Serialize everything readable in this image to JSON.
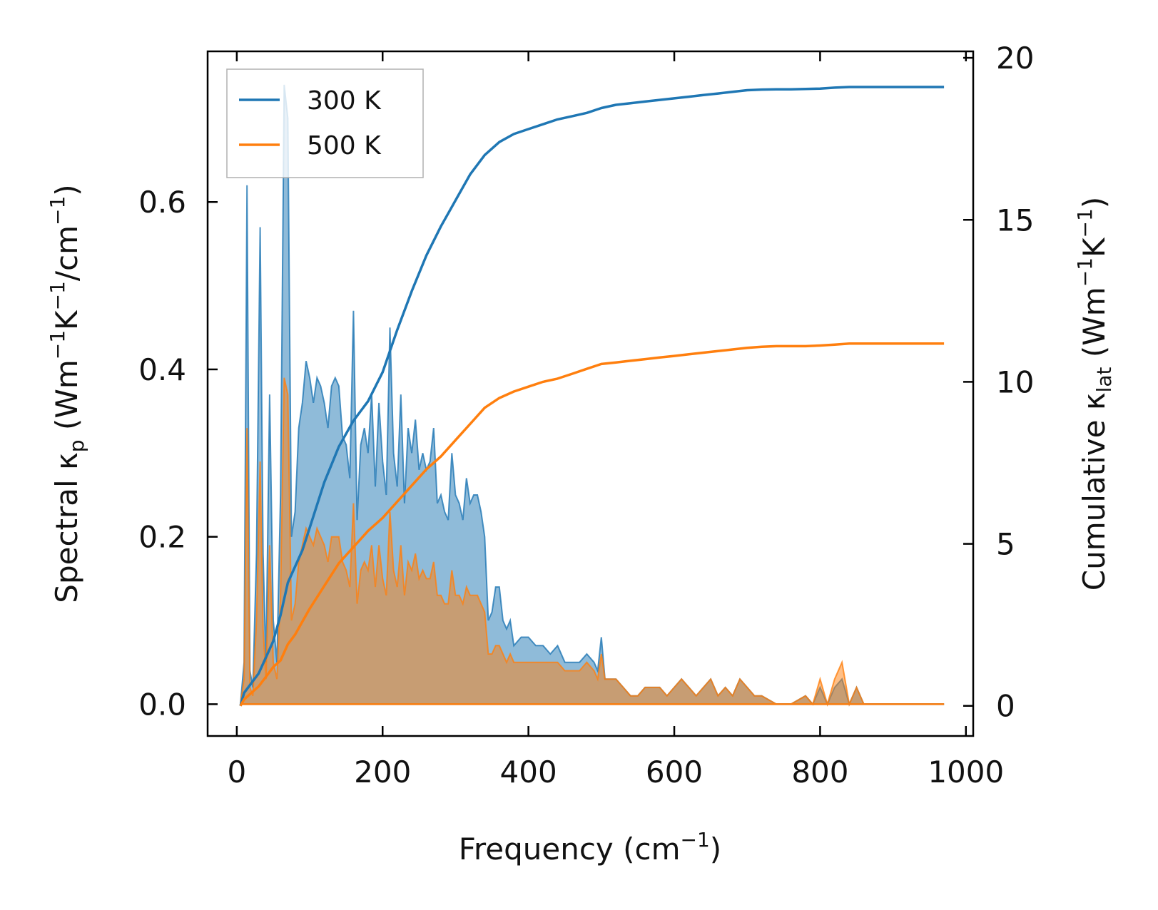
{
  "chart_data": {
    "type": "area",
    "xlabel": {
      "base": "Frequency (cm",
      "sup": "−1",
      "tail": ")"
    },
    "ylabel_left": {
      "base": "Spectral κ",
      "sub": "p",
      "mid": " (Wm",
      "sup1": "−1",
      "mid2": "K",
      "sup2": "−1",
      "mid3": "/cm",
      "sup3": "−1",
      "tail": ")"
    },
    "ylabel_right": {
      "base": "Cumulative κ",
      "sub": "lat",
      "mid": " (Wm",
      "sup1": "−1",
      "mid2": "K",
      "sup2": "−1",
      "tail": ")"
    },
    "xlim": [
      -40,
      1010
    ],
    "ylim_left": [
      -0.038,
      0.78
    ],
    "ylim_right": [
      -0.93,
      20.2
    ],
    "x_ticks": [
      0,
      200,
      400,
      600,
      800,
      1000
    ],
    "x_tick_labels": [
      "0",
      "200",
      "400",
      "600",
      "800",
      "1000"
    ],
    "y_left_ticks": [
      0.0,
      0.2,
      0.4,
      0.6
    ],
    "y_left_tick_labels": [
      "0.0",
      "0.2",
      "0.4",
      "0.6"
    ],
    "y_right_ticks": [
      0,
      5,
      10,
      15,
      20
    ],
    "y_right_tick_labels": [
      "0",
      "5",
      "10",
      "15",
      "20"
    ],
    "legend": {
      "position": "top-left",
      "entries": [
        {
          "label": "300 K",
          "color": "#1f77b4"
        },
        {
          "label": "500 K",
          "color": "#ff7f0e"
        }
      ]
    },
    "series": [
      {
        "name": "300 K",
        "color": "#1f77b4",
        "spectral": {
          "x": [
            5,
            10,
            14,
            18,
            22,
            27,
            32,
            36,
            40,
            45,
            50,
            55,
            60,
            65,
            70,
            75,
            80,
            85,
            90,
            95,
            100,
            105,
            110,
            115,
            120,
            125,
            130,
            135,
            140,
            145,
            150,
            155,
            160,
            165,
            170,
            175,
            180,
            185,
            190,
            195,
            200,
            205,
            210,
            215,
            220,
            225,
            230,
            235,
            240,
            245,
            250,
            255,
            260,
            265,
            270,
            275,
            280,
            285,
            290,
            295,
            300,
            305,
            310,
            315,
            320,
            325,
            330,
            335,
            340,
            345,
            350,
            355,
            360,
            365,
            370,
            375,
            380,
            390,
            400,
            410,
            420,
            430,
            440,
            450,
            460,
            470,
            480,
            490,
            495,
            500,
            505,
            510,
            520,
            530,
            540,
            550,
            560,
            570,
            580,
            590,
            600,
            610,
            620,
            630,
            640,
            650,
            660,
            670,
            680,
            690,
            700,
            710,
            720,
            740,
            760,
            780,
            790,
            800,
            810,
            820,
            830,
            840,
            850,
            860,
            880,
            900,
            950,
            970
          ],
          "y": [
            0.0,
            0.05,
            0.62,
            0.04,
            0.02,
            0.18,
            0.57,
            0.18,
            0.05,
            0.37,
            0.1,
            0.05,
            0.25,
            0.74,
            0.7,
            0.2,
            0.23,
            0.33,
            0.36,
            0.41,
            0.39,
            0.36,
            0.39,
            0.38,
            0.36,
            0.33,
            0.38,
            0.39,
            0.38,
            0.32,
            0.31,
            0.27,
            0.47,
            0.22,
            0.31,
            0.33,
            0.3,
            0.37,
            0.26,
            0.36,
            0.29,
            0.25,
            0.45,
            0.3,
            0.26,
            0.37,
            0.24,
            0.33,
            0.3,
            0.34,
            0.28,
            0.3,
            0.28,
            0.29,
            0.33,
            0.24,
            0.25,
            0.23,
            0.22,
            0.3,
            0.25,
            0.24,
            0.22,
            0.27,
            0.24,
            0.25,
            0.25,
            0.23,
            0.2,
            0.1,
            0.11,
            0.14,
            0.14,
            0.1,
            0.09,
            0.1,
            0.07,
            0.08,
            0.08,
            0.07,
            0.07,
            0.06,
            0.07,
            0.05,
            0.05,
            0.05,
            0.06,
            0.05,
            0.04,
            0.08,
            0.03,
            0.03,
            0.03,
            0.02,
            0.01,
            0.01,
            0.02,
            0.02,
            0.02,
            0.01,
            0.02,
            0.03,
            0.02,
            0.01,
            0.02,
            0.03,
            0.01,
            0.02,
            0.01,
            0.03,
            0.02,
            0.01,
            0.01,
            0.0,
            0.0,
            0.01,
            0.0,
            0.02,
            0.0,
            0.02,
            0.03,
            0.0,
            0.02,
            0.0,
            0.0,
            0.0,
            0.0,
            0.0
          ]
        },
        "cumulative": {
          "x": [
            5,
            10,
            20,
            30,
            40,
            50,
            60,
            70,
            80,
            90,
            100,
            120,
            140,
            160,
            180,
            200,
            220,
            240,
            260,
            280,
            300,
            320,
            340,
            360,
            380,
            400,
            420,
            440,
            460,
            480,
            500,
            520,
            540,
            560,
            580,
            600,
            620,
            640,
            660,
            680,
            700,
            720,
            740,
            760,
            780,
            800,
            820,
            840,
            860,
            880,
            900,
            950,
            970
          ],
          "y": [
            0.0,
            0.4,
            0.7,
            1.0,
            1.5,
            2.0,
            2.8,
            3.8,
            4.3,
            4.8,
            5.5,
            6.9,
            8.0,
            8.8,
            9.4,
            10.3,
            11.6,
            12.8,
            13.9,
            14.8,
            15.6,
            16.4,
            17.0,
            17.4,
            17.65,
            17.8,
            17.95,
            18.1,
            18.2,
            18.3,
            18.45,
            18.55,
            18.6,
            18.65,
            18.7,
            18.75,
            18.8,
            18.85,
            18.9,
            18.95,
            19.0,
            19.02,
            19.03,
            19.03,
            19.04,
            19.05,
            19.08,
            19.1,
            19.1,
            19.1,
            19.1,
            19.1,
            19.1
          ]
        }
      },
      {
        "name": "500 K",
        "color": "#ff7f0e",
        "spectral": {
          "x": [
            5,
            10,
            14,
            18,
            22,
            27,
            32,
            36,
            40,
            45,
            50,
            55,
            60,
            65,
            70,
            75,
            80,
            85,
            90,
            95,
            100,
            105,
            110,
            115,
            120,
            125,
            130,
            135,
            140,
            145,
            150,
            155,
            160,
            165,
            170,
            175,
            180,
            185,
            190,
            195,
            200,
            205,
            210,
            215,
            220,
            225,
            230,
            235,
            240,
            245,
            250,
            255,
            260,
            265,
            270,
            275,
            280,
            285,
            290,
            295,
            300,
            305,
            310,
            315,
            320,
            325,
            330,
            335,
            340,
            345,
            350,
            355,
            360,
            365,
            370,
            375,
            380,
            390,
            400,
            410,
            420,
            430,
            440,
            450,
            460,
            470,
            480,
            490,
            495,
            500,
            505,
            510,
            520,
            530,
            540,
            550,
            560,
            570,
            580,
            590,
            600,
            610,
            620,
            630,
            640,
            650,
            660,
            670,
            680,
            690,
            700,
            710,
            720,
            740,
            760,
            780,
            790,
            800,
            810,
            820,
            830,
            840,
            850,
            860,
            880,
            900,
            950,
            970
          ],
          "y": [
            0.0,
            0.03,
            0.33,
            0.02,
            0.01,
            0.1,
            0.29,
            0.09,
            0.03,
            0.19,
            0.05,
            0.03,
            0.13,
            0.39,
            0.37,
            0.1,
            0.12,
            0.17,
            0.19,
            0.21,
            0.2,
            0.19,
            0.21,
            0.2,
            0.19,
            0.17,
            0.2,
            0.2,
            0.2,
            0.17,
            0.16,
            0.14,
            0.24,
            0.12,
            0.16,
            0.17,
            0.16,
            0.19,
            0.14,
            0.19,
            0.15,
            0.13,
            0.23,
            0.16,
            0.14,
            0.19,
            0.13,
            0.17,
            0.16,
            0.18,
            0.15,
            0.16,
            0.15,
            0.15,
            0.17,
            0.13,
            0.13,
            0.12,
            0.12,
            0.16,
            0.13,
            0.13,
            0.12,
            0.14,
            0.13,
            0.13,
            0.13,
            0.12,
            0.11,
            0.06,
            0.06,
            0.07,
            0.07,
            0.06,
            0.05,
            0.06,
            0.05,
            0.05,
            0.05,
            0.05,
            0.05,
            0.05,
            0.05,
            0.04,
            0.04,
            0.04,
            0.05,
            0.04,
            0.03,
            0.06,
            0.03,
            0.03,
            0.03,
            0.02,
            0.01,
            0.01,
            0.02,
            0.02,
            0.02,
            0.01,
            0.02,
            0.03,
            0.02,
            0.01,
            0.02,
            0.03,
            0.01,
            0.02,
            0.01,
            0.03,
            0.02,
            0.01,
            0.01,
            0.0,
            0.0,
            0.01,
            0.0,
            0.03,
            0.0,
            0.03,
            0.05,
            0.0,
            0.02,
            0.0,
            0.0,
            0.0,
            0.0,
            0.0
          ]
        },
        "cumulative": {
          "x": [
            5,
            10,
            20,
            30,
            40,
            50,
            60,
            70,
            80,
            90,
            100,
            120,
            140,
            160,
            180,
            200,
            220,
            240,
            260,
            280,
            300,
            320,
            340,
            360,
            380,
            400,
            420,
            440,
            460,
            480,
            500,
            520,
            540,
            560,
            580,
            600,
            620,
            640,
            660,
            680,
            700,
            720,
            740,
            760,
            780,
            800,
            820,
            840,
            860,
            880,
            900,
            950,
            970
          ],
          "y": [
            0.0,
            0.2,
            0.4,
            0.6,
            0.9,
            1.2,
            1.4,
            1.9,
            2.2,
            2.6,
            3.0,
            3.7,
            4.4,
            4.9,
            5.4,
            5.8,
            6.3,
            6.8,
            7.3,
            7.7,
            8.2,
            8.7,
            9.2,
            9.5,
            9.7,
            9.85,
            10.0,
            10.1,
            10.25,
            10.4,
            10.55,
            10.6,
            10.65,
            10.7,
            10.75,
            10.8,
            10.85,
            10.9,
            10.95,
            11.0,
            11.05,
            11.08,
            11.1,
            11.1,
            11.1,
            11.12,
            11.15,
            11.18,
            11.18,
            11.18,
            11.18,
            11.18,
            11.18
          ]
        }
      }
    ]
  }
}
